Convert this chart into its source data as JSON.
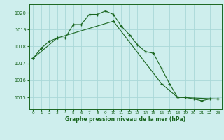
{
  "xlabel": "Graphe pression niveau de la mer (hPa)",
  "background_color": "#ceeeed",
  "grid_color": "#aad8d8",
  "line_color": "#1a6620",
  "ylim": [
    1014.3,
    1020.5
  ],
  "yticks": [
    1015,
    1016,
    1017,
    1018,
    1019,
    1020
  ],
  "xlim": [
    -0.5,
    23.5
  ],
  "xticks": [
    0,
    1,
    2,
    3,
    4,
    5,
    6,
    7,
    8,
    9,
    10,
    11,
    12,
    13,
    14,
    15,
    16,
    17,
    18,
    19,
    20,
    21,
    22,
    23
  ],
  "line1_x": [
    0,
    1,
    2,
    3,
    4,
    5,
    6,
    7,
    8,
    9,
    10,
    11,
    12,
    13,
    14,
    15,
    16,
    17,
    18,
    19,
    20,
    21,
    22,
    23
  ],
  "line1_y": [
    1017.3,
    1017.9,
    1018.3,
    1018.5,
    1018.5,
    1019.3,
    1019.3,
    1019.9,
    1019.9,
    1020.1,
    1019.9,
    1019.2,
    1018.7,
    1018.1,
    1017.7,
    1017.6,
    1016.7,
    1015.8,
    1015.0,
    1015.0,
    1014.9,
    1014.8,
    1014.9,
    1014.9
  ],
  "line2_x": [
    0,
    3,
    10,
    16,
    18,
    23
  ],
  "line2_y": [
    1017.3,
    1018.5,
    1019.5,
    1015.8,
    1015.0,
    1014.9
  ],
  "ylabel_fontsize": 5.0,
  "xlabel_fontsize": 5.5,
  "xtick_fontsize": 4.2,
  "ytick_fontsize": 4.8
}
